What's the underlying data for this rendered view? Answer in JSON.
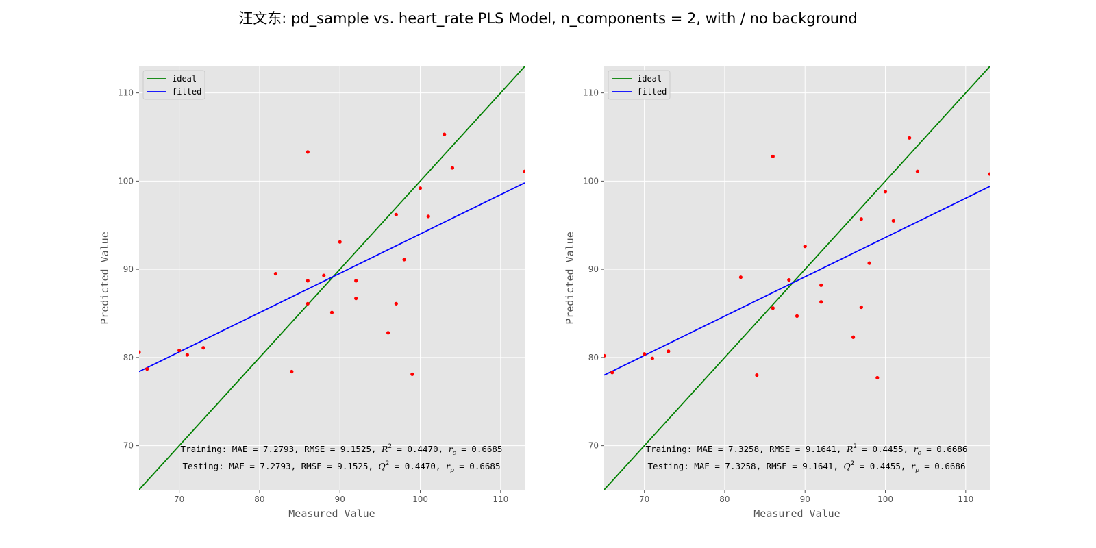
{
  "figure": {
    "title": "汪文东: pd_sample vs.  heart_rate PLS Model, n_components = 2, with / no background"
  },
  "colors": {
    "plot_bg": "#e5e5e5",
    "grid": "#ffffff",
    "ideal": "#008000",
    "fitted": "#0000ff",
    "points": "#ff0000",
    "tick_text": "#555555"
  },
  "chart_data": [
    {
      "type": "scatter",
      "xlabel": "Measured Value",
      "ylabel": "Predicted Value",
      "xlim": [
        65,
        113
      ],
      "ylim": [
        65,
        113
      ],
      "xticks": [
        70,
        80,
        90,
        100,
        110
      ],
      "yticks": [
        70,
        80,
        90,
        100,
        110
      ],
      "grid": true,
      "legend": {
        "placement": "top-left",
        "entries": [
          "ideal",
          "fitted"
        ]
      },
      "points": {
        "x": [
          65,
          66,
          70,
          71,
          73,
          82,
          84,
          86,
          86,
          86,
          88,
          89,
          90,
          92,
          92,
          96,
          97,
          97,
          98,
          99,
          100,
          101,
          103,
          104,
          113
        ],
        "y": [
          80.6,
          78.7,
          80.8,
          80.3,
          81.1,
          89.5,
          78.4,
          103.3,
          88.7,
          86.1,
          89.3,
          85.1,
          93.1,
          88.7,
          86.7,
          82.8,
          96.2,
          86.1,
          91.1,
          78.1,
          99.2,
          96.0,
          105.3,
          101.5,
          101.1
        ]
      },
      "ideal_line": {
        "x": [
          65,
          113
        ],
        "y": [
          65,
          113
        ]
      },
      "fitted_line": {
        "x": [
          65,
          113
        ],
        "y": [
          78.4,
          99.8
        ]
      },
      "annotations": {
        "training": {
          "prefix": "Training: MAE = 7.2793, RMSE = 9.1525, ",
          "stat_symbol": "R",
          "stat_value": " = 0.4470, ",
          "corr_symbol": "r",
          "corr_sub": "c",
          "corr_value": " = 0.6685"
        },
        "testing": {
          "prefix": "Testing: MAE = 7.2793, RMSE = 9.1525, ",
          "stat_symbol": "Q",
          "stat_value": " = 0.4470, ",
          "corr_symbol": "r",
          "corr_sub": "p",
          "corr_value": " = 0.6685"
        },
        "superscript": "2"
      }
    },
    {
      "type": "scatter",
      "xlabel": "Measured Value",
      "ylabel": "Predicted Value",
      "xlim": [
        65,
        113
      ],
      "ylim": [
        65,
        113
      ],
      "xticks": [
        70,
        80,
        90,
        100,
        110
      ],
      "yticks": [
        70,
        80,
        90,
        100,
        110
      ],
      "grid": true,
      "legend": {
        "placement": "top-left",
        "entries": [
          "ideal",
          "fitted"
        ]
      },
      "points": {
        "x": [
          65,
          66,
          70,
          71,
          73,
          82,
          84,
          86,
          86,
          88,
          89,
          90,
          92,
          92,
          96,
          97,
          97,
          98,
          99,
          100,
          101,
          103,
          104,
          113
        ],
        "y": [
          80.2,
          78.3,
          80.4,
          79.9,
          80.7,
          89.1,
          78.0,
          102.8,
          85.6,
          88.8,
          84.7,
          92.6,
          88.2,
          86.3,
          82.3,
          95.7,
          85.7,
          90.7,
          77.7,
          98.8,
          95.5,
          104.9,
          101.1,
          100.8
        ]
      },
      "ideal_line": {
        "x": [
          65,
          113
        ],
        "y": [
          65,
          113
        ]
      },
      "fitted_line": {
        "x": [
          65,
          113
        ],
        "y": [
          78.0,
          99.4
        ]
      },
      "annotations": {
        "training": {
          "prefix": "Training: MAE = 7.3258, RMSE = 9.1641, ",
          "stat_symbol": "R",
          "stat_value": " = 0.4455, ",
          "corr_symbol": "r",
          "corr_sub": "c",
          "corr_value": " = 0.6686"
        },
        "testing": {
          "prefix": "Testing: MAE = 7.3258, RMSE = 9.1641, ",
          "stat_symbol": "Q",
          "stat_value": " = 0.4455, ",
          "corr_symbol": "r",
          "corr_sub": "p",
          "corr_value": " = 0.6686"
        },
        "superscript": "2"
      }
    }
  ]
}
